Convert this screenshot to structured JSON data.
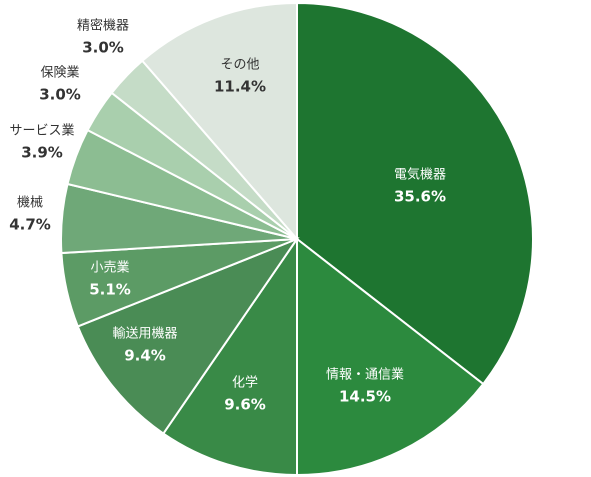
{
  "chart_data": {
    "type": "pie",
    "categories": [
      "電気機器",
      "情報・通信業",
      "化学",
      "輸送用機器",
      "小売業",
      "機械",
      "サービス業",
      "保険業",
      "精密機器",
      "その他"
    ],
    "values": [
      35.6,
      14.5,
      9.6,
      9.4,
      5.1,
      4.7,
      3.9,
      3.0,
      3.0,
      11.4
    ],
    "value_labels": [
      "35.6%",
      "14.5%",
      "9.6%",
      "9.4%",
      "5.1%",
      "4.7%",
      "3.9%",
      "3.0%",
      "3.0%",
      "11.4%"
    ],
    "colors": [
      "#1e7530",
      "#2c8a3e",
      "#398a47",
      "#4a8c55",
      "#5c9b65",
      "#6fa878",
      "#8cbd92",
      "#a9cfad",
      "#c5dcc7",
      "#dde6de"
    ]
  }
}
